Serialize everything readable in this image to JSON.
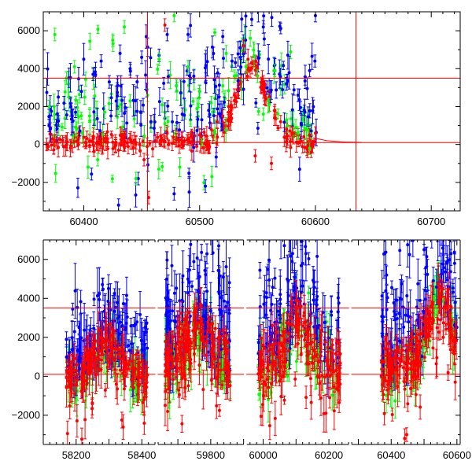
{
  "chart_data": [
    {
      "type": "scatter",
      "panel": "top",
      "xlim": [
        60365,
        60725
      ],
      "ylim": [
        -3500,
        7000
      ],
      "xticks": [
        60400,
        60500,
        60600,
        60700
      ],
      "xtick_labels": [
        "60400",
        "60500",
        "60600",
        "60700"
      ],
      "yticks": [
        -2000,
        0,
        2000,
        4000,
        6000
      ],
      "ytick_labels": [
        "−2000",
        "0",
        "2000",
        "4000",
        "6000"
      ],
      "xlabel": "",
      "ylabel": "",
      "title": "",
      "hlines": [
        3500,
        100
      ],
      "vlines": [
        60455,
        60635
      ],
      "colors": {
        "series_a": "#ff0000",
        "series_b": "#0000ff",
        "series_c": "#00ff00"
      },
      "series": [
        {
          "color": "#ff0000",
          "points": [
            [
              60368,
              0
            ],
            [
              60375,
              200
            ],
            [
              60385,
              150
            ],
            [
              60395,
              250
            ],
            [
              60405,
              180
            ],
            [
              60415,
              300
            ],
            [
              60425,
              120
            ],
            [
              60435,
              350
            ],
            [
              60445,
              100
            ],
            [
              60452,
              -800
            ],
            [
              60456,
              -2800
            ],
            [
              60462,
              200
            ],
            [
              60470,
              150
            ],
            [
              60480,
              250
            ],
            [
              60490,
              300
            ],
            [
              60500,
              500
            ],
            [
              60510,
              800
            ],
            [
              60515,
              1200
            ],
            [
              60520,
              1500
            ],
            [
              60525,
              2000
            ],
            [
              60530,
              2600
            ],
            [
              60535,
              3200
            ],
            [
              60540,
              3800
            ],
            [
              60545,
              4300
            ],
            [
              60550,
              4000
            ],
            [
              60555,
              3300
            ],
            [
              60560,
              2500
            ],
            [
              60565,
              1800
            ],
            [
              60570,
              1200
            ],
            [
              60575,
              800
            ],
            [
              60580,
              600
            ],
            [
              60585,
              500
            ],
            [
              60590,
              400
            ],
            [
              60595,
              500
            ],
            [
              60600,
              600
            ],
            [
              60548,
              -600
            ],
            [
              60562,
              -1000
            ],
            [
              60538,
              5200
            ],
            [
              60470,
              6300
            ],
            [
              60430,
              -300
            ]
          ]
        },
        {
          "color": "#0000ff",
          "points": [
            [
              60370,
              1000
            ],
            [
              60378,
              2500
            ],
            [
              60390,
              1500
            ],
            [
              60398,
              2800
            ],
            [
              60408,
              3700
            ],
            [
              60415,
              4400
            ],
            [
              60422,
              3300
            ],
            [
              60430,
              -3200
            ],
            [
              60440,
              4000
            ],
            [
              60450,
              4600
            ],
            [
              60458,
              1200
            ],
            [
              60465,
              4700
            ],
            [
              60472,
              5800
            ],
            [
              60480,
              3100
            ],
            [
              60485,
              1600
            ],
            [
              60490,
              5800
            ],
            [
              60495,
              3600
            ],
            [
              60500,
              2800
            ],
            [
              60505,
              -2200
            ],
            [
              60512,
              4800
            ],
            [
              60520,
              5700
            ],
            [
              60528,
              4400
            ],
            [
              60535,
              5100
            ],
            [
              60545,
              6600
            ],
            [
              60555,
              6200
            ],
            [
              60565,
              4200
            ],
            [
              60575,
              3200
            ],
            [
              60585,
              2600
            ],
            [
              60595,
              3900
            ],
            [
              60600,
              6800
            ],
            [
              60478,
              -2600
            ],
            [
              60447,
              -1800
            ]
          ]
        },
        {
          "color": "#00ff00",
          "points": [
            [
              60370,
              2000
            ],
            [
              60375,
              5800
            ],
            [
              60385,
              3500
            ],
            [
              60392,
              4100
            ],
            [
              60405,
              1500
            ],
            [
              60418,
              1700
            ],
            [
              60425,
              5500
            ],
            [
              60435,
              6200
            ],
            [
              60440,
              2300
            ],
            [
              60445,
              -1800
            ],
            [
              60455,
              2600
            ],
            [
              60465,
              4500
            ],
            [
              60470,
              1100
            ],
            [
              60480,
              3100
            ],
            [
              60490,
              4100
            ],
            [
              60500,
              2800
            ],
            [
              60510,
              2200
            ],
            [
              60520,
              3100
            ],
            [
              60530,
              3600
            ],
            [
              60540,
              4100
            ],
            [
              60550,
              3600
            ],
            [
              60555,
              1600
            ],
            [
              60560,
              2100
            ],
            [
              60565,
              3900
            ],
            [
              60575,
              1300
            ],
            [
              60585,
              600
            ],
            [
              60595,
              -200
            ],
            [
              60412,
              -800
            ],
            [
              60478,
              6800
            ]
          ]
        }
      ]
    },
    {
      "type": "scatter",
      "panel": "bottom",
      "x_segments": [
        [
          58100,
          58440
        ],
        [
          59640,
          59900
        ],
        [
          59950,
          60260
        ],
        [
          60280,
          60610
        ]
      ],
      "ylim": [
        -3500,
        7000
      ],
      "xticks": [
        58200,
        58300,
        58400,
        59800,
        60000,
        60100,
        60200,
        60400,
        60500,
        60600
      ],
      "xtick_labels": [
        "58200",
        "58400",
        "59800",
        "60000",
        "60200",
        "60400",
        "60600"
      ],
      "yticks": [
        -2000,
        0,
        2000,
        4000,
        6000
      ],
      "ytick_labels": [
        "−2000",
        "0",
        "2000",
        "4000",
        "6000"
      ],
      "xlabel": "",
      "ylabel": "",
      "title": "",
      "hlines": [
        3500,
        100
      ],
      "seasons": [
        {
          "x_range": [
            58170,
            58420
          ],
          "baseline": 0,
          "spread": 600,
          "red_peak": 1600,
          "blue_peak": 3600,
          "green_peak": 4300
        },
        {
          "x_range": [
            59660,
            59860
          ],
          "baseline": 600,
          "spread": 900,
          "red_peak": 2800,
          "blue_peak": 5600,
          "green_peak": 5200
        },
        {
          "x_range": [
            59985,
            60235
          ],
          "baseline": 500,
          "spread": 900,
          "red_peak": 2600,
          "blue_peak": 5900,
          "green_peak": 6100
        },
        {
          "x_range": [
            60370,
            60600
          ],
          "baseline": 500,
          "spread": 700,
          "red_peak": 4200,
          "blue_peak": 6400,
          "green_peak": 5400
        }
      ],
      "series_colors": [
        "#ff0000",
        "#0000ff",
        "#00ff00"
      ]
    }
  ]
}
